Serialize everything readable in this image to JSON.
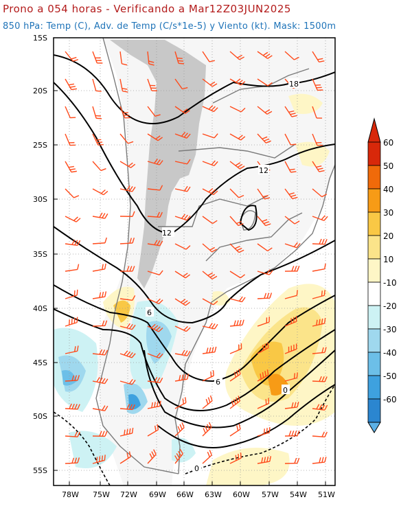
{
  "title": "Prono a 054 horas - Verificando a Mar12Z03JUN2025",
  "subtitle": "850 hPa: Temp (C), Adv. de Temp (C/s*1e-5) y Viento (kt). Mask: 1500m",
  "lat_labels": [
    "15S",
    "20S",
    "25S",
    "30S",
    "35S",
    "40S",
    "45S",
    "50S",
    "55S"
  ],
  "lon_labels": [
    "78W",
    "75W",
    "72W",
    "69W",
    "66W",
    "63W",
    "60W",
    "57W",
    "54W",
    "51W"
  ],
  "colorbar": {
    "labels": [
      "60",
      "50",
      "40",
      "30",
      "20",
      "10",
      "-10",
      "-20",
      "-30",
      "-40",
      "-50",
      "-60"
    ],
    "colors": [
      "#d8280a",
      "#f06a0a",
      "#f79b16",
      "#f9c845",
      "#fbe48a",
      "#fef6c6",
      "#ffffff",
      "#cdf2f4",
      "#9fd8ee",
      "#6cbfe8",
      "#3ea1df",
      "#2b86d0"
    ]
  },
  "contour_labels": [
    {
      "text": "18"
    },
    {
      "text": "12"
    },
    {
      "text": "12"
    },
    {
      "text": "6"
    },
    {
      "text": "6"
    },
    {
      "text": "0"
    },
    {
      "text": "0"
    }
  ],
  "colors": {
    "warm": "#f9c845",
    "cold": "#6cbfe8",
    "barb": "#ff4a1a",
    "mask": "#c8c8c8",
    "border": "#7a7a7a"
  }
}
